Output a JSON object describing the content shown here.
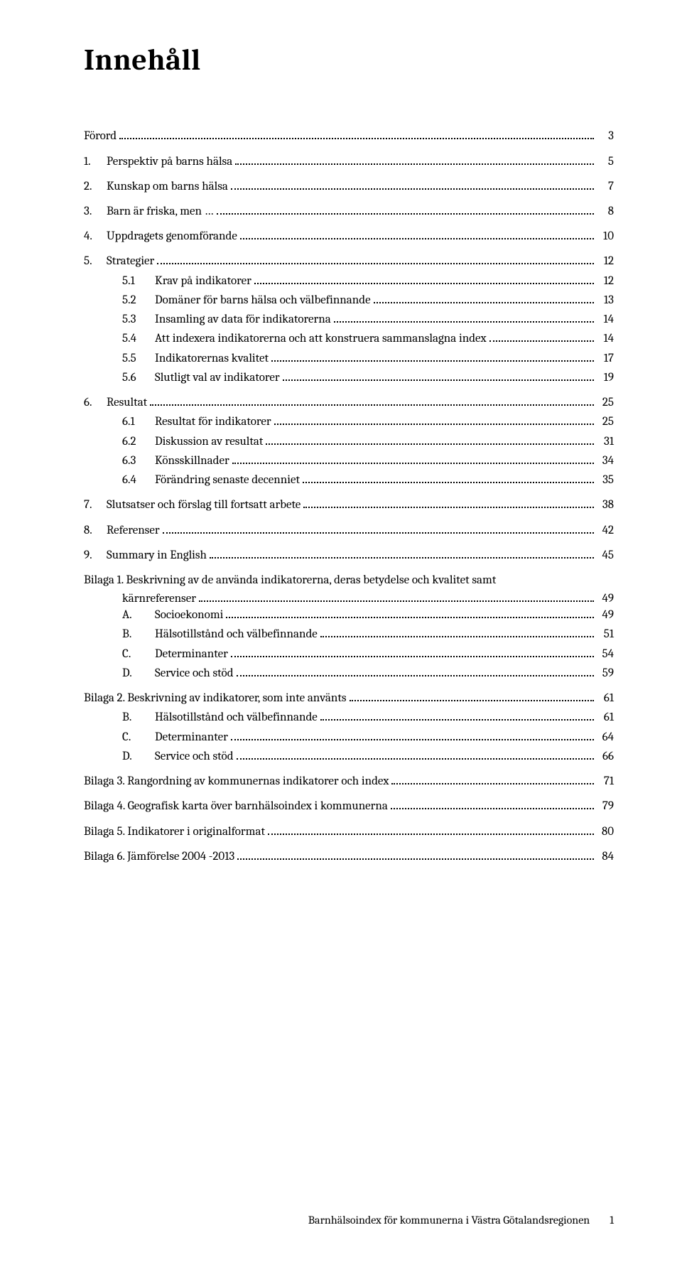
{
  "title": "Innehåll",
  "toc": [
    {
      "kind": "top",
      "num": "",
      "text": "Förord",
      "page": "3",
      "groupStart": true,
      "first": true
    },
    {
      "kind": "top",
      "num": "1.",
      "text": "Perspektiv på barns hälsa",
      "page": "5",
      "groupStart": true
    },
    {
      "kind": "top",
      "num": "2.",
      "text": "Kunskap om barns hälsa",
      "page": "7",
      "groupStart": true
    },
    {
      "kind": "top",
      "num": "3.",
      "text": "Barn är friska, men …",
      "page": "8",
      "groupStart": true
    },
    {
      "kind": "top",
      "num": "4.",
      "text": "Uppdragets genomförande",
      "page": "10",
      "groupStart": true
    },
    {
      "kind": "top",
      "num": "5.",
      "text": "Strategier",
      "page": "12",
      "groupStart": true
    },
    {
      "kind": "sub",
      "num": "5.1",
      "text": "Krav på indikatorer",
      "page": "12"
    },
    {
      "kind": "sub",
      "num": "5.2",
      "text": "Domäner för barns hälsa och välbefinnande",
      "page": "13"
    },
    {
      "kind": "sub",
      "num": "5.3",
      "text": "Insamling av data för indikatorerna",
      "page": "14"
    },
    {
      "kind": "sub",
      "num": "5.4",
      "text": "Att indexera indikatorerna och att konstruera sammanslagna index",
      "page": "14"
    },
    {
      "kind": "sub",
      "num": "5.5",
      "text": "Indikatorernas kvalitet",
      "page": "17"
    },
    {
      "kind": "sub",
      "num": "5.6",
      "text": "Slutligt val av indikatorer",
      "page": "19"
    },
    {
      "kind": "top",
      "num": "6.",
      "text": "Resultat",
      "page": "25",
      "groupStart": true
    },
    {
      "kind": "sub",
      "num": "6.1",
      "text": "Resultat för indikatorer",
      "page": "25"
    },
    {
      "kind": "sub",
      "num": "6.2",
      "text": "Diskussion av resultat",
      "page": "31"
    },
    {
      "kind": "sub",
      "num": "6.3",
      "text": "Könsskillnader",
      "page": "34"
    },
    {
      "kind": "sub",
      "num": "6.4",
      "text": "Förändring senaste decenniet",
      "page": "35"
    },
    {
      "kind": "top",
      "num": "7.",
      "text": "Slutsatser och förslag till fortsatt arbete",
      "page": "38",
      "groupStart": true
    },
    {
      "kind": "top",
      "num": "8.",
      "text": "Referenser",
      "page": "42",
      "groupStart": true
    },
    {
      "kind": "top",
      "num": "9.",
      "text": "Summary in English",
      "page": "45",
      "groupStart": true
    },
    {
      "kind": "bilaga-multi",
      "line1": "Bilaga 1. Beskrivning av de använda indikatorerna, deras betydelse och kvalitet samt",
      "line2": "kärnreferenser",
      "page": "49"
    },
    {
      "kind": "subletter",
      "letter": "A.",
      "text": "Socioekonomi",
      "page": "49"
    },
    {
      "kind": "subletter",
      "letter": "B.",
      "text": "Hälsotillstånd och välbefinnande",
      "page": "51"
    },
    {
      "kind": "subletter",
      "letter": "C.",
      "text": "Determinanter",
      "page": "54"
    },
    {
      "kind": "subletter",
      "letter": "D.",
      "text": "Service och stöd",
      "page": "59"
    },
    {
      "kind": "top",
      "num": "",
      "text": "Bilaga 2. Beskrivning av indikatorer, som inte använts",
      "page": "61",
      "groupStart": true
    },
    {
      "kind": "subletter",
      "letter": "B.",
      "text": "Hälsotillstånd och välbefinnande",
      "page": "61"
    },
    {
      "kind": "subletter",
      "letter": "C.",
      "text": "Determinanter",
      "page": "64"
    },
    {
      "kind": "subletter",
      "letter": "D.",
      "text": "Service och stöd",
      "page": "66"
    },
    {
      "kind": "top",
      "num": "",
      "text": "Bilaga 3. Rangordning av kommunernas indikatorer och index",
      "page": "71",
      "groupStart": true
    },
    {
      "kind": "top",
      "num": "",
      "text": "Bilaga 4. Geografisk karta över barnhälsoindex i kommunerna",
      "page": "79",
      "groupStart": true
    },
    {
      "kind": "top",
      "num": "",
      "text": "Bilaga 5. Indikatorer i originalformat",
      "page": "80",
      "groupStart": true
    },
    {
      "kind": "top",
      "num": "",
      "text": "Bilaga 6. Jämförelse 2004 -2013",
      "page": "84",
      "groupStart": true
    }
  ],
  "footer": {
    "text": "Barnhälsoindex för kommunerna i Västra Götalandsregionen",
    "pageNumber": "1"
  }
}
